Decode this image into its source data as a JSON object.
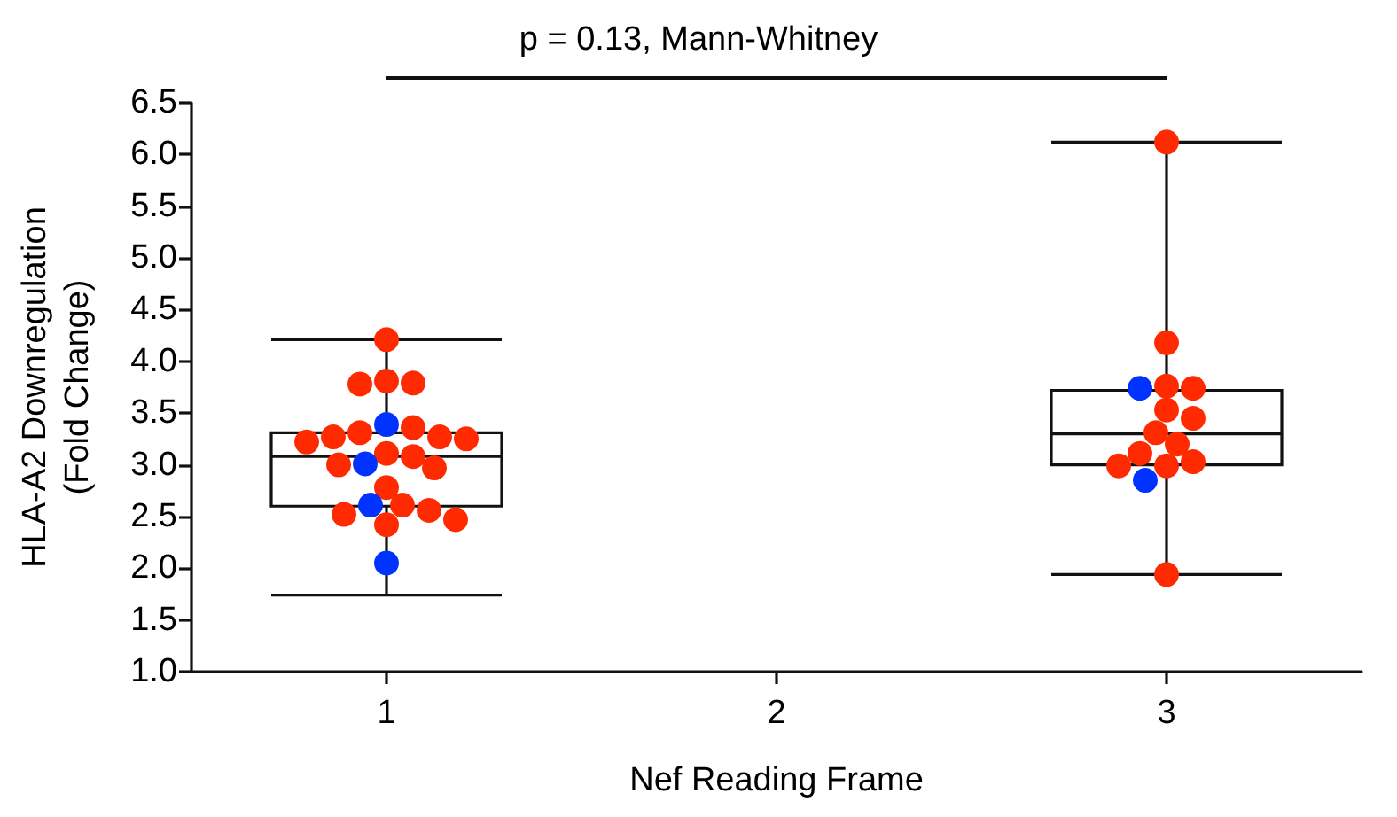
{
  "chart_data": {
    "type": "box",
    "xlabel": "Nef Reading Frame",
    "ylabel": "HLA-A2 Downregulation\n(Fold Change)",
    "categories": [
      "1",
      "2",
      "3"
    ],
    "boxes": [
      {
        "low": 1.74,
        "q1": 2.6,
        "median": 3.08,
        "q3": 3.31,
        "high": 4.21
      },
      null,
      {
        "low": 1.94,
        "q1": 3.0,
        "median": 3.3,
        "q3": 3.72,
        "high": 6.12
      }
    ],
    "series": [
      {
        "type": "scatter",
        "color": "#ff2a00",
        "x": [
          "1",
          "1",
          "1",
          "1",
          "1",
          "1",
          "1",
          "1",
          "1",
          "1",
          "1",
          "1",
          "1",
          "1",
          "1",
          "1",
          "1",
          "1",
          "1",
          "1",
          "3",
          "3",
          "3",
          "3",
          "3",
          "3",
          "3",
          "3",
          "3",
          "3",
          "3",
          "3",
          "3"
        ],
        "values": [
          4.21,
          3.81,
          3.78,
          3.79,
          3.36,
          3.31,
          3.27,
          3.22,
          3.25,
          3.27,
          3.08,
          3.11,
          2.97,
          3.0,
          2.78,
          2.52,
          2.42,
          2.47,
          2.56,
          2.61,
          6.12,
          4.18,
          3.76,
          3.74,
          3.53,
          3.45,
          3.31,
          3.2,
          3.11,
          3.03,
          2.99,
          2.99,
          1.94
        ]
      },
      {
        "type": "scatter",
        "color": "#0033ff",
        "x": [
          "1",
          "1",
          "1",
          "1",
          "3",
          "3"
        ],
        "values": [
          3.39,
          3.01,
          2.61,
          2.05,
          3.74,
          2.85
        ]
      }
    ],
    "ylim": [
      1.0,
      6.5
    ],
    "yticks": [
      {
        "value": 1.0,
        "label": "1.0"
      },
      {
        "value": 1.5,
        "label": "1.5"
      },
      {
        "value": 2.0,
        "label": "2.0"
      },
      {
        "value": 2.5,
        "label": "2.5"
      },
      {
        "value": 3.0,
        "label": "3.0"
      },
      {
        "value": 3.5,
        "label": "3.5"
      },
      {
        "value": 4.0,
        "label": "4.0"
      },
      {
        "value": 4.5,
        "label": "4.5"
      },
      {
        "value": 5.0,
        "label": "5.0"
      },
      {
        "value": 5.5,
        "label": "5.5"
      },
      {
        "value": 6.0,
        "label": "6.0"
      },
      {
        "value": 6.5,
        "label": "6.5"
      }
    ],
    "annotations": [
      "p = 0.13, Mann-Whitney"
    ],
    "grid": false,
    "marker": "circle"
  }
}
